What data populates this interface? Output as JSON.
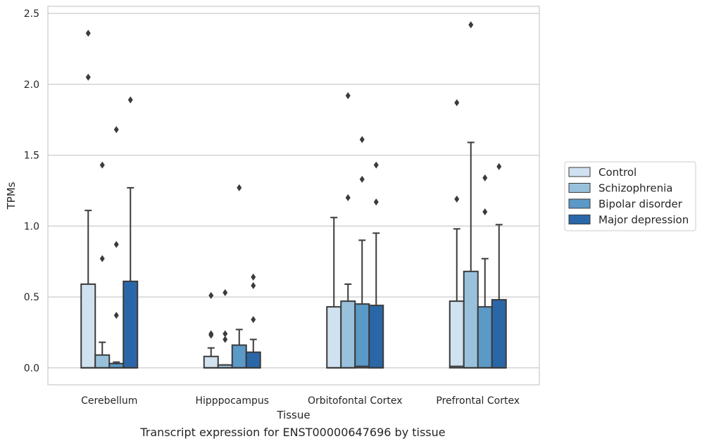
{
  "caption": "Transcript expression for ENST00000647696 by tissue",
  "chart_data": {
    "type": "bar",
    "xlabel": "Tissue",
    "ylabel": "TPMs",
    "ylim": [
      -0.12,
      2.55
    ],
    "yticks": [
      "0.0",
      "0.5",
      "1.0",
      "1.5",
      "2.0",
      "2.5"
    ],
    "ytick_values": [
      0.0,
      0.5,
      1.0,
      1.5,
      2.0,
      2.5
    ],
    "grid": true,
    "legend_position": "right",
    "categories": [
      "Cerebellum",
      "Hipppocampus",
      "Orbitofontal Cortex",
      "Prefrontal Cortex"
    ],
    "series": [
      {
        "name": "Control",
        "color": "#d0e1f0",
        "boxes": [
          {
            "q1": 0.0,
            "median": 0.0,
            "q3": 0.59,
            "whisker_low": 0.0,
            "whisker_high": 1.11,
            "outliers": [
              2.05,
              2.36
            ]
          },
          {
            "q1": 0.0,
            "median": 0.0,
            "q3": 0.08,
            "whisker_low": 0.0,
            "whisker_high": 0.14,
            "outliers": [
              0.23,
              0.24,
              0.51
            ]
          },
          {
            "q1": 0.0,
            "median": 0.0,
            "q3": 0.43,
            "whisker_low": 0.0,
            "whisker_high": 1.06,
            "outliers": []
          },
          {
            "q1": 0.0,
            "median": 0.01,
            "q3": 0.47,
            "whisker_low": 0.0,
            "whisker_high": 0.98,
            "outliers": [
              1.19,
              1.87
            ]
          }
        ]
      },
      {
        "name": "Schizophrenia",
        "color": "#99c1dc",
        "boxes": [
          {
            "q1": 0.0,
            "median": 0.0,
            "q3": 0.09,
            "whisker_low": 0.0,
            "whisker_high": 0.18,
            "outliers": [
              0.77,
              1.43
            ]
          },
          {
            "q1": 0.0,
            "median": 0.0,
            "q3": 0.02,
            "whisker_low": 0.0,
            "whisker_high": 0.02,
            "outliers": [
              0.2,
              0.24,
              0.53
            ]
          },
          {
            "q1": 0.0,
            "median": 0.0,
            "q3": 0.47,
            "whisker_low": 0.0,
            "whisker_high": 0.59,
            "outliers": [
              1.2,
              1.92
            ]
          },
          {
            "q1": 0.0,
            "median": 0.0,
            "q3": 0.68,
            "whisker_low": 0.0,
            "whisker_high": 1.59,
            "outliers": [
              2.42
            ]
          }
        ]
      },
      {
        "name": "Bipolar disorder",
        "color": "#5b99c7",
        "boxes": [
          {
            "q1": 0.0,
            "median": 0.0,
            "q3": 0.03,
            "whisker_low": 0.0,
            "whisker_high": 0.04,
            "outliers": [
              0.37,
              0.87,
              1.68
            ]
          },
          {
            "q1": 0.0,
            "median": 0.0,
            "q3": 0.16,
            "whisker_low": 0.0,
            "whisker_high": 0.27,
            "outliers": [
              1.27
            ]
          },
          {
            "q1": 0.0,
            "median": 0.01,
            "q3": 0.45,
            "whisker_low": 0.0,
            "whisker_high": 0.9,
            "outliers": [
              1.33,
              1.61
            ]
          },
          {
            "q1": 0.0,
            "median": 0.0,
            "q3": 0.43,
            "whisker_low": 0.0,
            "whisker_high": 0.77,
            "outliers": [
              1.1,
              1.34
            ]
          }
        ]
      },
      {
        "name": "Major depression",
        "color": "#2a67a8",
        "boxes": [
          {
            "q1": 0.0,
            "median": 0.0,
            "q3": 0.61,
            "whisker_low": 0.0,
            "whisker_high": 1.27,
            "outliers": [
              1.89
            ]
          },
          {
            "q1": 0.0,
            "median": 0.0,
            "q3": 0.11,
            "whisker_low": 0.0,
            "whisker_high": 0.2,
            "outliers": [
              0.34,
              0.58,
              0.64
            ]
          },
          {
            "q1": 0.0,
            "median": 0.0,
            "q3": 0.44,
            "whisker_low": 0.0,
            "whisker_high": 0.95,
            "outliers": [
              1.17,
              1.43
            ]
          },
          {
            "q1": 0.0,
            "median": 0.0,
            "q3": 0.48,
            "whisker_low": 0.0,
            "whisker_high": 1.01,
            "outliers": [
              1.42
            ]
          }
        ]
      }
    ]
  }
}
